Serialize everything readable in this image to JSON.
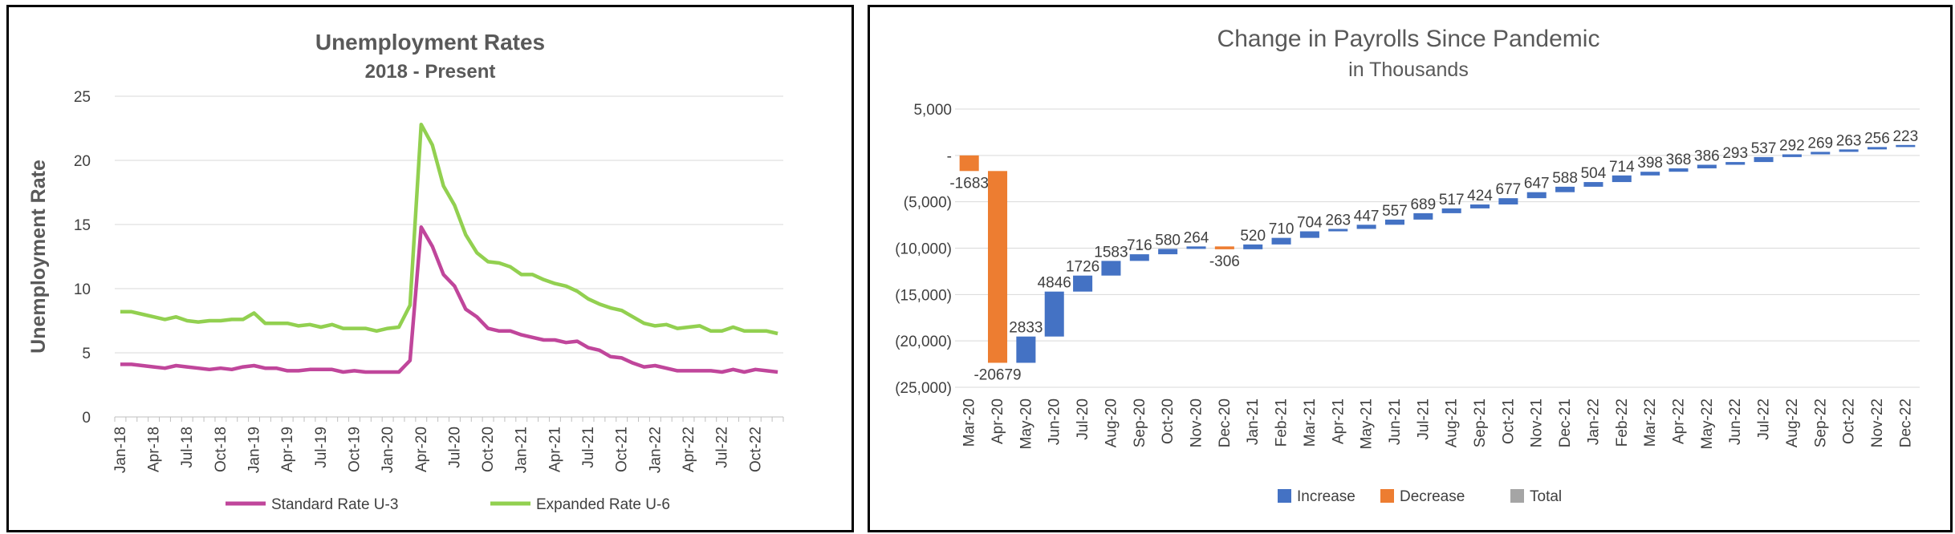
{
  "chart_data": [
    {
      "type": "line",
      "title": "Unemployment Rates",
      "subtitle": "2018 - Present",
      "xlabel": "",
      "ylabel": "Unemployment Rate",
      "ylim": [
        0,
        25
      ],
      "yticks": [
        "0",
        "5",
        "10",
        "15",
        "20",
        "25"
      ],
      "x": [
        "Jan-18",
        "Feb-18",
        "Mar-18",
        "Apr-18",
        "May-18",
        "Jun-18",
        "Jul-18",
        "Aug-18",
        "Sep-18",
        "Oct-18",
        "Nov-18",
        "Dec-18",
        "Jan-19",
        "Feb-19",
        "Mar-19",
        "Apr-19",
        "May-19",
        "Jun-19",
        "Jul-19",
        "Aug-19",
        "Sep-19",
        "Oct-19",
        "Nov-19",
        "Dec-19",
        "Jan-20",
        "Feb-20",
        "Mar-20",
        "Apr-20",
        "May-20",
        "Jun-20",
        "Jul-20",
        "Aug-20",
        "Sep-20",
        "Oct-20",
        "Nov-20",
        "Dec-20",
        "Jan-21",
        "Feb-21",
        "Mar-21",
        "Apr-21",
        "May-21",
        "Jun-21",
        "Jul-21",
        "Aug-21",
        "Sep-21",
        "Oct-21",
        "Nov-21",
        "Dec-21",
        "Jan-22",
        "Feb-22",
        "Mar-22",
        "Apr-22",
        "May-22",
        "Jun-22",
        "Jul-22",
        "Aug-22",
        "Sep-22",
        "Oct-22",
        "Nov-22",
        "Dec-22"
      ],
      "xtick_labels": [
        "Jan-18",
        "Apr-18",
        "Jul-18",
        "Oct-18",
        "Jan-19",
        "Apr-19",
        "Jul-19",
        "Oct-19",
        "Jan-20",
        "Apr-20",
        "Jul-20",
        "Oct-20",
        "Jan-21",
        "Apr-21",
        "Jul-21",
        "Oct-21",
        "Jan-22",
        "Apr-22",
        "Jul-22",
        "Oct-22"
      ],
      "series": [
        {
          "name": "Standard Rate U-3",
          "color": "#c0469b",
          "values": [
            4.1,
            4.1,
            4.0,
            3.9,
            3.8,
            4.0,
            3.9,
            3.8,
            3.7,
            3.8,
            3.7,
            3.9,
            4.0,
            3.8,
            3.8,
            3.6,
            3.6,
            3.7,
            3.7,
            3.7,
            3.5,
            3.6,
            3.5,
            3.5,
            3.5,
            3.5,
            4.4,
            14.8,
            13.3,
            11.1,
            10.2,
            8.4,
            7.8,
            6.9,
            6.7,
            6.7,
            6.4,
            6.2,
            6.0,
            6.0,
            5.8,
            5.9,
            5.4,
            5.2,
            4.7,
            4.6,
            4.2,
            3.9,
            4.0,
            3.8,
            3.6,
            3.6,
            3.6,
            3.6,
            3.5,
            3.7,
            3.5,
            3.7,
            3.6,
            3.5
          ]
        },
        {
          "name": "Expanded Rate U-6",
          "color": "#92d050",
          "values": [
            8.2,
            8.2,
            8.0,
            7.8,
            7.6,
            7.8,
            7.5,
            7.4,
            7.5,
            7.5,
            7.6,
            7.6,
            8.1,
            7.3,
            7.3,
            7.3,
            7.1,
            7.2,
            7.0,
            7.2,
            6.9,
            6.9,
            6.9,
            6.7,
            6.9,
            7.0,
            8.7,
            22.8,
            21.2,
            18.0,
            16.5,
            14.2,
            12.8,
            12.1,
            12.0,
            11.7,
            11.1,
            11.1,
            10.7,
            10.4,
            10.2,
            9.8,
            9.2,
            8.8,
            8.5,
            8.3,
            7.8,
            7.3,
            7.1,
            7.2,
            6.9,
            7.0,
            7.1,
            6.7,
            6.7,
            7.0,
            6.7,
            6.7,
            6.7,
            6.5
          ]
        }
      ],
      "legend": "bottom"
    },
    {
      "type": "waterfall",
      "title": "Change in Payrolls Since Pandemic",
      "subtitle": "in Thousands",
      "ylim": [
        -25000,
        5000
      ],
      "yticks": [
        "5,000",
        "-",
        "(5,000)",
        "(10,000)",
        "(15,000)",
        "(20,000)",
        "(25,000)"
      ],
      "categories": [
        "Mar-20",
        "Apr-20",
        "May-20",
        "Jun-20",
        "Jul-20",
        "Aug-20",
        "Sep-20",
        "Oct-20",
        "Nov-20",
        "Dec-20",
        "Jan-21",
        "Feb-21",
        "Mar-21",
        "Apr-21",
        "May-21",
        "Jun-21",
        "Jul-21",
        "Aug-21",
        "Sep-21",
        "Oct-21",
        "Nov-21",
        "Dec-21",
        "Jan-22",
        "Feb-22",
        "Mar-22",
        "Apr-22",
        "May-22",
        "Jun-22",
        "Jul-22",
        "Aug-22",
        "Sep-22",
        "Oct-22",
        "Nov-22",
        "Dec-22"
      ],
      "values": [
        -1683,
        -20679,
        2833,
        4846,
        1726,
        1583,
        716,
        580,
        264,
        -306,
        520,
        710,
        704,
        263,
        447,
        557,
        689,
        517,
        424,
        677,
        647,
        588,
        504,
        714,
        398,
        368,
        386,
        293,
        537,
        292,
        269,
        263,
        256,
        223
      ],
      "legend": "bottom",
      "legend_entries": [
        {
          "name": "Increase",
          "color": "#4472c4"
        },
        {
          "name": "Decrease",
          "color": "#ed7d31"
        },
        {
          "name": "Total",
          "color": "#a5a5a5"
        }
      ]
    }
  ]
}
